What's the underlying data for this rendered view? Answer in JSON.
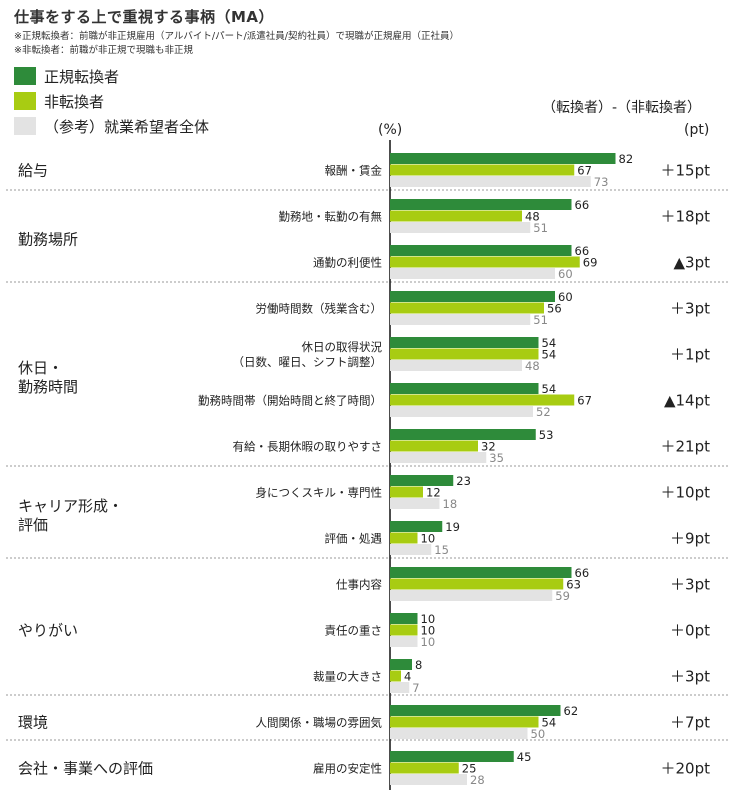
{
  "title": "仕事をする上で重視する事柄（MA）",
  "notes": [
    "※正規転換者：前職が非正規雇用（アルバイト/パート/派遣社員/契約社員）で現職が正規雇用（正社員）",
    "※非転換者：前職が非正規で現職も非正規"
  ],
  "legend": [
    {
      "label": "正規転換者",
      "color": "#2e8b3a"
    },
    {
      "label": "非転換者",
      "color": "#a8cc12"
    },
    {
      "label": "（参考）就業希望者全体",
      "color": "#e3e3e3"
    }
  ],
  "header": {
    "percent_unit": "(%)",
    "diff_title": "（転換者）‐（非転換者）",
    "diff_unit": "(pt)"
  },
  "chart_data": {
    "type": "bar",
    "orientation": "horizontal",
    "xlim": [
      0,
      100
    ],
    "series": [
      {
        "name": "正規転換者",
        "color": "#2e8b3a",
        "values": [
          82,
          66,
          66,
          60,
          54,
          54,
          53,
          23,
          19,
          66,
          10,
          8,
          62,
          45
        ]
      },
      {
        "name": "非転換者",
        "color": "#a8cc12",
        "values": [
          67,
          48,
          69,
          56,
          54,
          67,
          32,
          12,
          10,
          63,
          10,
          4,
          54,
          25
        ]
      },
      {
        "name": "（参考）就業希望者全体",
        "color": "#e3e3e3",
        "values": [
          73,
          51,
          60,
          51,
          48,
          52,
          35,
          18,
          15,
          59,
          10,
          7,
          50,
          28
        ]
      }
    ],
    "categories": [
      [
        "報酬・賃金"
      ],
      [
        "勤務地・転勤の有無"
      ],
      [
        "通勤の利便性"
      ],
      [
        "労働時間数（残業含む）"
      ],
      [
        "休日の取得状況",
        "（日数、曜日、シフト調整）"
      ],
      [
        "勤務時間帯（開始時間と終了時間）"
      ],
      [
        "有給・長期休暇の取りやすさ"
      ],
      [
        "身につくスキル・専門性"
      ],
      [
        "評価・処遇"
      ],
      [
        "仕事内容"
      ],
      [
        "責任の重さ"
      ],
      [
        "裁量の大きさ"
      ],
      [
        "人間関係・職場の雰囲気"
      ],
      [
        "雇用の安定性"
      ]
    ],
    "differences": [
      "＋15pt",
      "＋18pt",
      "▲3pt",
      "＋3pt",
      "＋1pt",
      "▲14pt",
      "＋21pt",
      "＋10pt",
      "＋9pt",
      "＋3pt",
      "＋0pt",
      "＋3pt",
      "＋7pt",
      "＋20pt"
    ],
    "groups": [
      {
        "label": [
          "給与"
        ],
        "first": 0,
        "count": 1
      },
      {
        "label": [
          "勤務場所"
        ],
        "first": 1,
        "count": 2
      },
      {
        "label": [
          "休日・",
          "勤務時間"
        ],
        "first": 3,
        "count": 4
      },
      {
        "label": [
          "キャリア形成・",
          "評価"
        ],
        "first": 7,
        "count": 2
      },
      {
        "label": [
          "やりがい"
        ],
        "first": 9,
        "count": 3
      },
      {
        "label": [
          "環境"
        ],
        "first": 12,
        "count": 1
      },
      {
        "label": [
          "会社・事業への評価"
        ],
        "first": 13,
        "count": 1
      }
    ]
  }
}
